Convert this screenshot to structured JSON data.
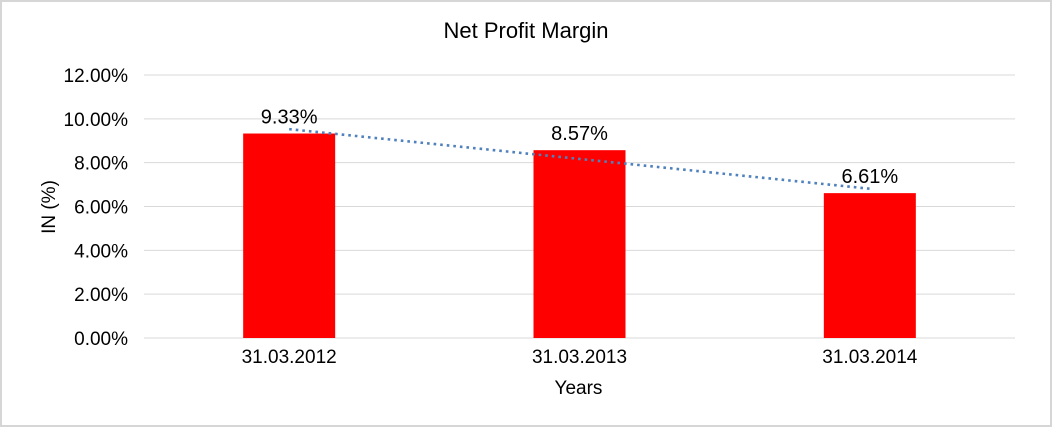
{
  "chart_data": {
    "type": "bar",
    "title": "Net Profit Margin",
    "xlabel": "Years",
    "ylabel": "IN (%)",
    "categories": [
      "31.03.2012",
      "31.03.2013",
      "31.03.2014"
    ],
    "values": [
      9.33,
      8.57,
      6.61
    ],
    "data_labels": [
      "9.33%",
      "8.57%",
      "6.61%"
    ],
    "ylim": [
      0,
      12
    ],
    "ytick_step": 2,
    "ytick_labels": [
      "0.00%",
      "2.00%",
      "4.00%",
      "6.00%",
      "8.00%",
      "10.00%",
      "12.00%"
    ],
    "grid": true,
    "legend": "none",
    "bar_color": "#ff0000",
    "gridline_color": "#d9d9d9",
    "text_color": "#000000",
    "trendline": {
      "type": "linear",
      "style": "dotted",
      "color": "#4f81bd"
    }
  }
}
